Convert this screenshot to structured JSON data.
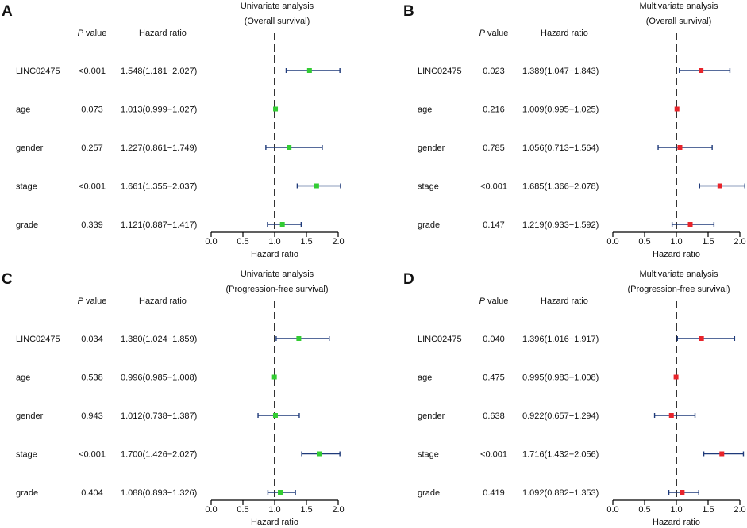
{
  "colors": {
    "error_bar": "#1f3a7a",
    "axis": "#000000",
    "text": "#111111",
    "univariate_marker": "#33cc33",
    "multivariate_marker": "#e8242b"
  },
  "chart_data": [
    {
      "type": "forest",
      "panel_label": "A",
      "title": "Univariate analysis",
      "subtitle": "(Overall survival)",
      "pvalue_header": "P value",
      "hr_header": "Hazard ratio",
      "xlabel": "Hazard ratio",
      "xlim": [
        0,
        2
      ],
      "xticks": [
        "0.0",
        "0.5",
        "1.0",
        "1.5",
        "2.0"
      ],
      "reference_line": 1,
      "marker_color": "#33cc33",
      "rows": [
        {
          "label": "LINC02475",
          "pvalue": "<0.001",
          "hr_text": "1.548(1.181−2.027)",
          "hr": 1.548,
          "lower": 1.181,
          "upper": 2.027
        },
        {
          "label": "age",
          "pvalue": "0.073",
          "hr_text": "1.013(0.999−1.027)",
          "hr": 1.013,
          "lower": 0.999,
          "upper": 1.027
        },
        {
          "label": "gender",
          "pvalue": "0.257",
          "hr_text": "1.227(0.861−1.749)",
          "hr": 1.227,
          "lower": 0.861,
          "upper": 1.749
        },
        {
          "label": "stage",
          "pvalue": "<0.001",
          "hr_text": "1.661(1.355−2.037)",
          "hr": 1.661,
          "lower": 1.355,
          "upper": 2.037
        },
        {
          "label": "grade",
          "pvalue": "0.339",
          "hr_text": "1.121(0.887−1.417)",
          "hr": 1.121,
          "lower": 0.887,
          "upper": 1.417
        }
      ]
    },
    {
      "type": "forest",
      "panel_label": "B",
      "title": "Multivariate analysis",
      "subtitle": "(Overall survival)",
      "pvalue_header": "P value",
      "hr_header": "Hazard ratio",
      "xlabel": "Hazard ratio",
      "xlim": [
        0,
        2
      ],
      "xticks": [
        "0.0",
        "0.5",
        "1.0",
        "1.5",
        "2.0"
      ],
      "reference_line": 1,
      "marker_color": "#e8242b",
      "rows": [
        {
          "label": "LINC02475",
          "pvalue": "0.023",
          "hr_text": "1.389(1.047−1.843)",
          "hr": 1.389,
          "lower": 1.047,
          "upper": 1.843
        },
        {
          "label": "age",
          "pvalue": "0.216",
          "hr_text": "1.009(0.995−1.025)",
          "hr": 1.009,
          "lower": 0.995,
          "upper": 1.025
        },
        {
          "label": "gender",
          "pvalue": "0.785",
          "hr_text": "1.056(0.713−1.564)",
          "hr": 1.056,
          "lower": 0.713,
          "upper": 1.564
        },
        {
          "label": "stage",
          "pvalue": "<0.001",
          "hr_text": "1.685(1.366−2.078)",
          "hr": 1.685,
          "lower": 1.366,
          "upper": 2.078
        },
        {
          "label": "grade",
          "pvalue": "0.147",
          "hr_text": "1.219(0.933−1.592)",
          "hr": 1.219,
          "lower": 0.933,
          "upper": 1.592
        }
      ]
    },
    {
      "type": "forest",
      "panel_label": "C",
      "title": "Univariate analysis",
      "subtitle": "(Progression-free survival)",
      "pvalue_header": "P value",
      "hr_header": "Hazard ratio",
      "xlabel": "Hazard ratio",
      "xlim": [
        0,
        2
      ],
      "xticks": [
        "0.0",
        "0.5",
        "1.0",
        "1.5",
        "2.0"
      ],
      "reference_line": 1,
      "marker_color": "#33cc33",
      "rows": [
        {
          "label": "LINC02475",
          "pvalue": "0.034",
          "hr_text": "1.380(1.024−1.859)",
          "hr": 1.38,
          "lower": 1.024,
          "upper": 1.859
        },
        {
          "label": "age",
          "pvalue": "0.538",
          "hr_text": "0.996(0.985−1.008)",
          "hr": 0.996,
          "lower": 0.985,
          "upper": 1.008
        },
        {
          "label": "gender",
          "pvalue": "0.943",
          "hr_text": "1.012(0.738−1.387)",
          "hr": 1.012,
          "lower": 0.738,
          "upper": 1.387
        },
        {
          "label": "stage",
          "pvalue": "<0.001",
          "hr_text": "1.700(1.426−2.027)",
          "hr": 1.7,
          "lower": 1.426,
          "upper": 2.027
        },
        {
          "label": "grade",
          "pvalue": "0.404",
          "hr_text": "1.088(0.893−1.326)",
          "hr": 1.088,
          "lower": 0.893,
          "upper": 1.326
        }
      ]
    },
    {
      "type": "forest",
      "panel_label": "D",
      "title": "Multivariate analysis",
      "subtitle": "(Progression-free survival)",
      "pvalue_header": "P value",
      "hr_header": "Hazard ratio",
      "xlabel": "Hazard ratio",
      "xlim": [
        0,
        2
      ],
      "xticks": [
        "0.0",
        "0.5",
        "1.0",
        "1.5",
        "2.0"
      ],
      "reference_line": 1,
      "marker_color": "#e8242b",
      "rows": [
        {
          "label": "LINC02475",
          "pvalue": "0.040",
          "hr_text": "1.396(1.016−1.917)",
          "hr": 1.396,
          "lower": 1.016,
          "upper": 1.917
        },
        {
          "label": "age",
          "pvalue": "0.475",
          "hr_text": "0.995(0.983−1.008)",
          "hr": 0.995,
          "lower": 0.983,
          "upper": 1.008
        },
        {
          "label": "gender",
          "pvalue": "0.638",
          "hr_text": "0.922(0.657−1.294)",
          "hr": 0.922,
          "lower": 0.657,
          "upper": 1.294
        },
        {
          "label": "stage",
          "pvalue": "<0.001",
          "hr_text": "1.716(1.432−2.056)",
          "hr": 1.716,
          "lower": 1.432,
          "upper": 2.056
        },
        {
          "label": "grade",
          "pvalue": "0.419",
          "hr_text": "1.092(0.882−1.353)",
          "hr": 1.092,
          "lower": 0.882,
          "upper": 1.353
        }
      ]
    }
  ]
}
